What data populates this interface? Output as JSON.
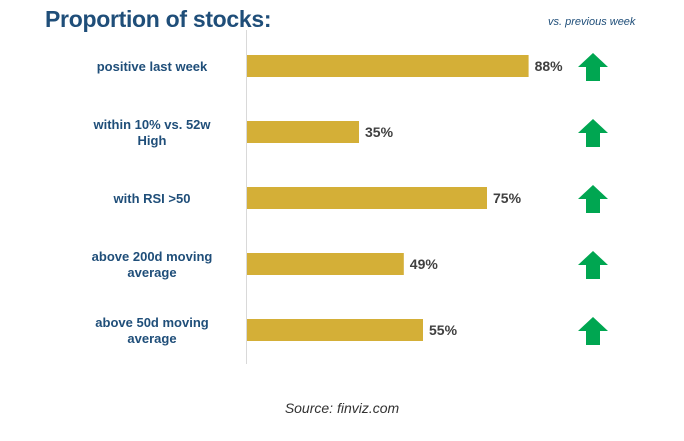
{
  "header": {
    "title": "Proportion of stocks:",
    "subtitle": "vs. previous week"
  },
  "footer": {
    "source": "Source: finviz.com"
  },
  "colors": {
    "bar": "#d4af37",
    "title": "#1f4e79",
    "category_label": "#1f4e79",
    "value_label": "#404040",
    "arrow": "#00a651",
    "axis": "#d9d9d9"
  },
  "chart_data": {
    "type": "bar",
    "orientation": "horizontal",
    "title": "Proportion of stocks:",
    "xlim": [
      0,
      100
    ],
    "grid": false,
    "categories": [
      [
        "positive last week"
      ],
      [
        "within 10% vs. 52w",
        "High"
      ],
      [
        "with RSI >50"
      ],
      [
        "above 200d moving",
        "average"
      ],
      [
        "above 50d moving",
        "average"
      ]
    ],
    "values": [
      88,
      35,
      75,
      49,
      55
    ],
    "value_labels": [
      "88%",
      "35%",
      "75%",
      "49%",
      "55%"
    ],
    "trend": [
      "up",
      "up",
      "up",
      "up",
      "up"
    ]
  }
}
